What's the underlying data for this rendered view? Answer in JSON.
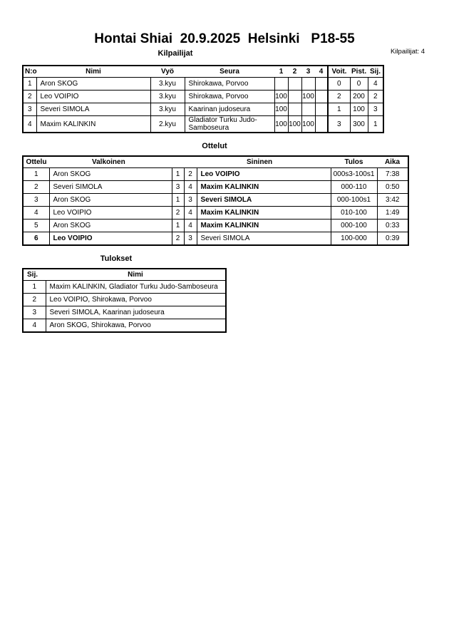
{
  "title": "Hontai Shiai  20.9.2025  Helsinki   P18-55",
  "competitors": {
    "section_title": "Kilpailijat",
    "count_label": "Kilpailijat: 4",
    "headers": [
      "N:o",
      "Nimi",
      "Vyö",
      "Seura",
      "1",
      "2",
      "3",
      "4",
      "Voit.",
      "Pist.",
      "Sij."
    ],
    "rows": [
      [
        "1",
        "Aron SKOG",
        "3.kyu",
        "Shirokawa, Porvoo",
        "",
        "",
        "",
        "",
        "0",
        "0",
        "4"
      ],
      [
        "2",
        "Leo VOIPIO",
        "3.kyu",
        "Shirokawa, Porvoo",
        "100",
        "",
        "100",
        "",
        "2",
        "200",
        "2"
      ],
      [
        "3",
        "Severi SIMOLA",
        "3.kyu",
        "Kaarinan judoseura",
        "100",
        "",
        "",
        "",
        "1",
        "100",
        "3"
      ],
      [
        "4",
        "Maxim KALINKIN",
        "2.kyu",
        "Gladiator Turku Judo-Samboseura",
        "100",
        "100",
        "100",
        "",
        "3",
        "300",
        "1"
      ]
    ]
  },
  "matches": {
    "section_title": "Ottelut",
    "headers": [
      "Ottelu",
      "Valkoinen",
      "",
      "",
      "Sininen",
      "Tulos",
      "Aika"
    ],
    "rows": [
      {
        "cells": [
          "1",
          "Aron SKOG",
          "1",
          "2",
          "Leo VOIPIO",
          "000s3-100s1",
          "7:38"
        ],
        "winner": "blue"
      },
      {
        "cells": [
          "2",
          "Severi SIMOLA",
          "3",
          "4",
          "Maxim KALINKIN",
          "000-110",
          "0:50"
        ],
        "winner": "blue"
      },
      {
        "cells": [
          "3",
          "Aron SKOG",
          "1",
          "3",
          "Severi SIMOLA",
          "000-100s1",
          "3:42"
        ],
        "winner": "blue"
      },
      {
        "cells": [
          "4",
          "Leo VOIPIO",
          "2",
          "4",
          "Maxim KALINKIN",
          "010-100",
          "1:49"
        ],
        "winner": "blue"
      },
      {
        "cells": [
          "5",
          "Aron SKOG",
          "1",
          "4",
          "Maxim KALINKIN",
          "000-100",
          "0:33"
        ],
        "winner": "blue"
      },
      {
        "cells": [
          "6",
          "Leo VOIPIO",
          "2",
          "3",
          "Severi SIMOLA",
          "100-000",
          "0:39"
        ],
        "winner": "white"
      }
    ]
  },
  "results": {
    "section_title": "Tulokset",
    "headers": [
      "Sij.",
      "Nimi"
    ],
    "rows": [
      [
        "1",
        "Maxim KALINKIN, Gladiator Turku Judo-Samboseura"
      ],
      [
        "2",
        "Leo VOIPIO, Shirokawa, Porvoo"
      ],
      [
        "3",
        "Severi SIMOLA, Kaarinan judoseura"
      ],
      [
        "4",
        "Aron SKOG, Shirokawa, Porvoo"
      ]
    ]
  }
}
